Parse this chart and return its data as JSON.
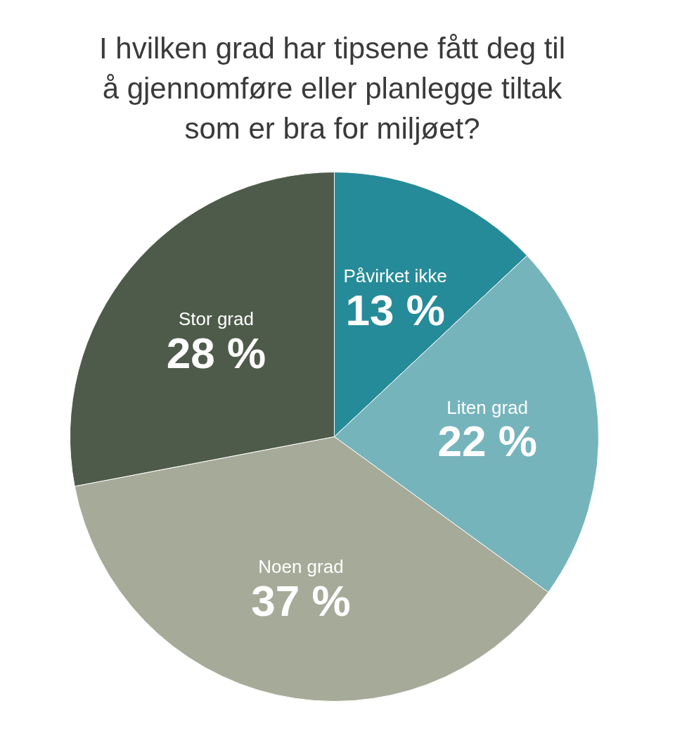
{
  "chart_data": {
    "type": "pie",
    "title": "I hvilken grad har tipsene fått deg til\nå gjennomføre eller planlegge tiltak\nsom er bra for miljøet?",
    "categories": [
      "Påvirket ikke",
      "Liten grad",
      "Noen grad",
      "Stor grad"
    ],
    "values": [
      13,
      22,
      37,
      28
    ],
    "colors": [
      "#268b98",
      "#76b4bc",
      "#a6aa98",
      "#4f5b4a"
    ],
    "value_labels": [
      "13 %",
      "22 %",
      "37 %",
      "28 %"
    ]
  }
}
